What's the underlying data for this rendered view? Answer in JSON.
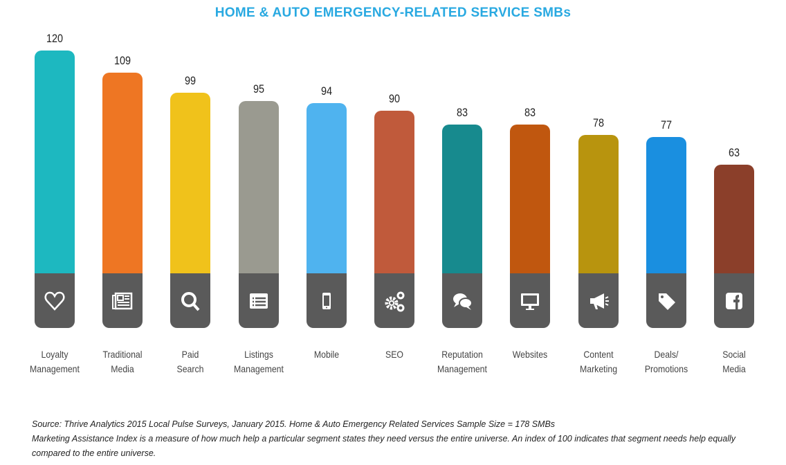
{
  "chart_data": {
    "type": "bar",
    "title": "HOME & AUTO EMERGENCY-RELATED SERVICE SMBs",
    "categories": [
      "Loyalty Management",
      "Traditional Media",
      "Paid Search",
      "Listings Management",
      "Mobile",
      "SEO",
      "Reputation Management",
      "Websites",
      "Content Marketing",
      "Deals/ Promotions",
      "Social Media"
    ],
    "category_lines": [
      [
        "Loyalty",
        "Management"
      ],
      [
        "Traditional",
        "Media"
      ],
      [
        "Paid",
        "Search"
      ],
      [
        "Listings",
        "Management"
      ],
      [
        "Mobile",
        ""
      ],
      [
        "SEO",
        ""
      ],
      [
        "Reputation",
        "Management"
      ],
      [
        "Websites",
        ""
      ],
      [
        "Content",
        "Marketing"
      ],
      [
        "Deals/",
        "Promotions"
      ],
      [
        "Social",
        "Media"
      ]
    ],
    "values": [
      120,
      109,
      99,
      95,
      94,
      90,
      83,
      83,
      78,
      77,
      63
    ],
    "value_labels": [
      "120",
      "109",
      "99",
      "95",
      "94",
      "90",
      "83",
      "83",
      "78",
      "77",
      "63"
    ],
    "colors": [
      "#1db8c0",
      "#ee7623",
      "#f0c21b",
      "#9a9a90",
      "#4fb3ef",
      "#c05a3b",
      "#178a8e",
      "#c0570f",
      "#b8940e",
      "#1a8fe0",
      "#8b3f2a"
    ],
    "icons": [
      "heart-icon",
      "newspaper-icon",
      "search-icon",
      "list-icon",
      "mobile-phone-icon",
      "gears-icon",
      "chat-bubbles-icon",
      "monitor-icon",
      "megaphone-icon",
      "tag-icon",
      "facebook-icon"
    ],
    "xlabel": "",
    "ylabel": "",
    "grid": false,
    "legend": "none"
  },
  "footnote": {
    "source": "Source: Thrive Analytics 2015 Local Pulse Surveys, January 2015. Home & Auto Emergency Related Services Sample Size = 178 SMBs",
    "definition": "Marketing Assistance Index is a measure of how much help a particular segment states they need versus the entire universe. An index of 100 indicates that segment needs help equally compared to the entire universe."
  }
}
